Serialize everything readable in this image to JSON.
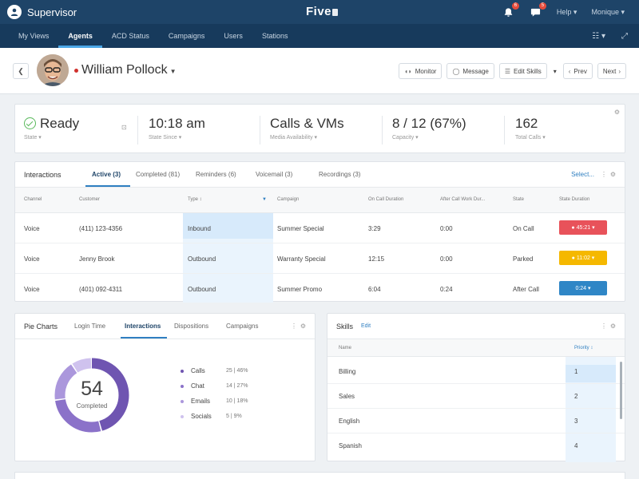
{
  "app": {
    "title": "Supervisor",
    "brand": "Five"
  },
  "topbar": {
    "notifications_count": "6",
    "messages_count": "5",
    "help_label": "Help",
    "user_label": "Monique"
  },
  "nav": {
    "items": [
      {
        "label": "My Views"
      },
      {
        "label": "Agents"
      },
      {
        "label": "ACD Status"
      },
      {
        "label": "Campaigns"
      },
      {
        "label": "Users"
      },
      {
        "label": "Stations"
      }
    ],
    "active": "Agents"
  },
  "agent": {
    "name": "William Pollock",
    "status_color": "#d0312d",
    "buttons": {
      "monitor": "Monitor",
      "message": "Message",
      "edit_skills": "Edit Skills",
      "prev": "Prev",
      "next": "Next"
    }
  },
  "summary": {
    "state": {
      "value": "Ready",
      "label": "State"
    },
    "state_since": {
      "value": "10:18 am",
      "label": "State Since"
    },
    "media": {
      "value": "Calls & VMs",
      "label": "Media Availability"
    },
    "capacity": {
      "value": "8 / 12 (67%)",
      "label": "Capacity"
    },
    "total_calls": {
      "value": "162",
      "label": "Total Calls"
    }
  },
  "interactions": {
    "title": "Interactions",
    "tabs": [
      {
        "label": "Active (3)"
      },
      {
        "label": "Completed (81)"
      },
      {
        "label": "Reminders (6)"
      },
      {
        "label": "Voicemail (3)"
      },
      {
        "label": "Recordings (3)"
      }
    ],
    "select_label": "Select...",
    "columns": {
      "channel": "Channel",
      "customer": "Customer",
      "type": "Type",
      "campaign": "Campaign",
      "on_call": "On Call Duration",
      "after_call": "After Call Work Dur...",
      "state": "State",
      "state_duration": "State Duration"
    },
    "rows": [
      {
        "channel": "Voice",
        "customer": "(411) 123-4356",
        "type": "Inbound",
        "campaign": "Summer Special",
        "on_call": "3:29",
        "after_call": "0:00",
        "state": "On Call",
        "duration": "45:21",
        "badge_color": "#e8525a"
      },
      {
        "channel": "Voice",
        "customer": "Jenny Brook",
        "type": "Outbound",
        "campaign": "Warranty Special",
        "on_call": "12:15",
        "after_call": "0:00",
        "state": "Parked",
        "duration": "11:02",
        "badge_color": "#f5b800"
      },
      {
        "channel": "Voice",
        "customer": "(401) 092-4311",
        "type": "Outbound",
        "campaign": "Summer Promo",
        "on_call": "6:04",
        "after_call": "0:24",
        "state": "After Call",
        "duration": "0:24",
        "badge_color": "#2f86c6"
      }
    ]
  },
  "pie": {
    "title": "Pie Charts",
    "tabs": [
      {
        "label": "Login Time"
      },
      {
        "label": "Interactions"
      },
      {
        "label": "Dispositions"
      },
      {
        "label": "Campaigns"
      }
    ],
    "center_value": "54",
    "center_label": "Completed",
    "legend": [
      {
        "name": "Calls",
        "value": "25 | 46%",
        "fraction": 0.46,
        "color": "#6f55b1"
      },
      {
        "name": "Chat",
        "value": "14 | 27%",
        "fraction": 0.27,
        "color": "#8b72c9"
      },
      {
        "name": "Emails",
        "value": "10 | 18%",
        "fraction": 0.18,
        "color": "#ab97dc"
      },
      {
        "name": "Socials",
        "value": "5 | 9%",
        "fraction": 0.09,
        "color": "#cfc2ee"
      }
    ]
  },
  "skills": {
    "title": "Skills",
    "edit_label": "Edit",
    "columns": {
      "name": "Name",
      "priority": "Priority"
    },
    "rows": [
      {
        "name": "Billing",
        "priority": "1"
      },
      {
        "name": "Sales",
        "priority": "2"
      },
      {
        "name": "English",
        "priority": "3"
      },
      {
        "name": "Spanish",
        "priority": "4"
      }
    ]
  }
}
